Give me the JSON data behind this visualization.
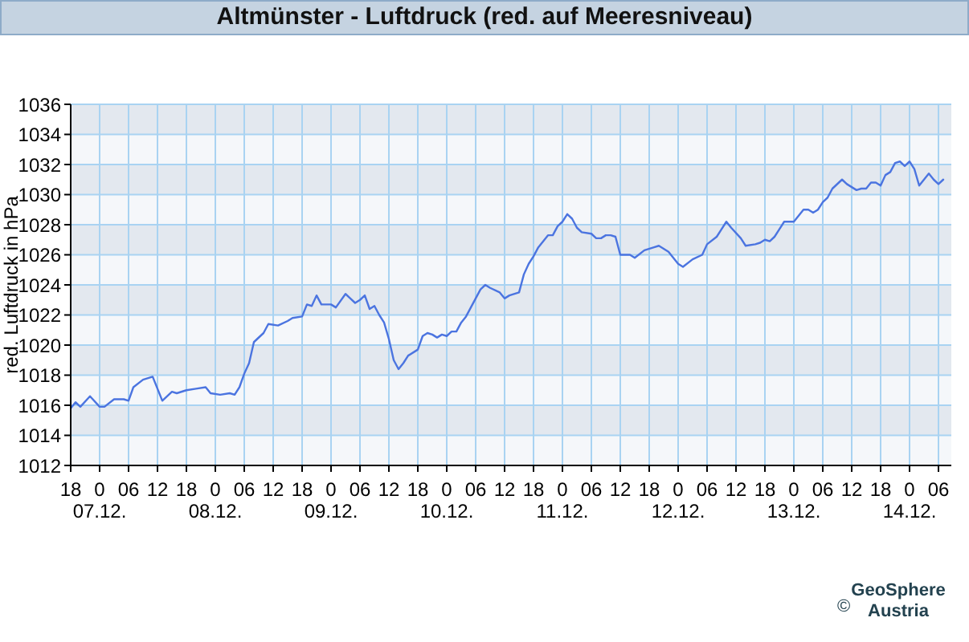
{
  "chart_data": {
    "type": "line",
    "title": "Altmünster - Luftdruck (red. auf Meeresniveau)",
    "ylabel": "red. Luftdruck in hPa",
    "x": [
      "--12-06T18:00",
      "--12-06T19:00",
      "--12-06T20:00",
      "--12-06T22:00",
      "--12-07T00:00",
      "--12-07T01:00",
      "--12-07T03:00",
      "--12-07T05:00",
      "--12-07T06:00",
      "--12-07T07:00",
      "--12-07T09:00",
      "--12-07T11:00",
      "--12-07T13:00",
      "--12-07T15:00",
      "--12-07T16:00",
      "--12-07T18:00",
      "--12-07T20:00",
      "--12-07T22:00",
      "--12-07T23:00",
      "--12-08T01:00",
      "--12-08T03:00",
      "--12-08T04:00",
      "--12-08T05:00",
      "--12-08T06:00",
      "--12-08T07:00",
      "--12-08T08:00",
      "--12-08T10:00",
      "--12-08T11:00",
      "--12-08T13:00",
      "--12-08T15:00",
      "--12-08T16:00",
      "--12-08T18:00",
      "--12-08T19:00",
      "--12-08T20:00",
      "--12-08T21:00",
      "--12-08T22:00",
      "--12-09T00:00",
      "--12-09T01:00",
      "--12-09T03:00",
      "--12-09T04:00",
      "--12-09T05:00",
      "--12-09T06:00",
      "--12-09T07:00",
      "--12-09T08:00",
      "--12-09T09:00",
      "--12-09T10:00",
      "--12-09T11:00",
      "--12-09T12:00",
      "--12-09T13:00",
      "--12-09T14:00",
      "--12-09T15:00",
      "--12-09T16:00",
      "--12-09T18:00",
      "--12-09T19:00",
      "--12-09T20:00",
      "--12-09T21:00",
      "--12-09T22:00",
      "--12-09T23:00",
      "--12-10T00:00",
      "--12-10T01:00",
      "--12-10T02:00",
      "--12-10T03:00",
      "--12-10T04:00",
      "--12-10T05:00",
      "--12-10T07:00",
      "--12-10T08:00",
      "--12-10T09:00",
      "--12-10T11:00",
      "--12-10T12:00",
      "--12-10T13:00",
      "--12-10T15:00",
      "--12-10T16:00",
      "--12-10T17:00",
      "--12-10T18:00",
      "--12-10T19:00",
      "--12-10T21:00",
      "--12-10T22:00",
      "--12-10T23:00",
      "--12-11T00:00",
      "--12-11T01:00",
      "--12-11T02:00",
      "--12-11T03:00",
      "--12-11T04:00",
      "--12-11T06:00",
      "--12-11T07:00",
      "--12-11T08:00",
      "--12-11T09:00",
      "--12-11T10:00",
      "--12-11T11:00",
      "--12-11T12:00",
      "--12-11T14:00",
      "--12-11T15:00",
      "--12-11T17:00",
      "--12-11T19:00",
      "--12-11T20:00",
      "--12-11T22:00",
      "--12-11T23:00",
      "--12-12T00:00",
      "--12-12T01:00",
      "--12-12T03:00",
      "--12-12T05:00",
      "--12-12T06:00",
      "--12-12T08:00",
      "--12-12T09:00",
      "--12-12T10:00",
      "--12-12T11:00",
      "--12-12T13:00",
      "--12-12T14:00",
      "--12-12T16:00",
      "--12-12T17:00",
      "--12-12T18:00",
      "--12-12T19:00",
      "--12-12T20:00",
      "--12-12T21:00",
      "--12-12T22:00",
      "--12-12T23:00",
      "--12-13T00:00",
      "--12-13T01:00",
      "--12-13T02:00",
      "--12-13T03:00",
      "--12-13T04:00",
      "--12-13T05:00",
      "--12-13T06:00",
      "--12-13T07:00",
      "--12-13T08:00",
      "--12-13T10:00",
      "--12-13T11:00",
      "--12-13T13:00",
      "--12-13T14:00",
      "--12-13T15:00",
      "--12-13T16:00",
      "--12-13T17:00",
      "--12-13T18:00",
      "--12-13T19:00",
      "--12-13T20:00",
      "--12-13T21:00",
      "--12-13T22:00",
      "--12-13T23:00",
      "--12-14T00:00",
      "--12-14T01:00",
      "--12-14T02:00",
      "--12-14T03:00",
      "--12-14T04:00",
      "--12-14T05:00",
      "--12-14T06:00",
      "--12-14T07:00"
    ],
    "values": [
      1015.8,
      1016.2,
      1015.9,
      1016.6,
      1015.9,
      1015.9,
      1016.4,
      1016.4,
      1016.3,
      1017.2,
      1017.7,
      1017.9,
      1016.3,
      1016.9,
      1016.8,
      1017.0,
      1017.1,
      1017.2,
      1016.8,
      1016.7,
      1016.8,
      1016.7,
      1017.2,
      1018.1,
      1018.8,
      1020.2,
      1020.8,
      1021.4,
      1021.3,
      1021.6,
      1021.8,
      1021.9,
      1022.7,
      1022.6,
      1023.3,
      1022.7,
      1022.7,
      1022.5,
      1023.4,
      1023.1,
      1022.8,
      1023.0,
      1023.3,
      1022.4,
      1022.6,
      1022.0,
      1021.5,
      1020.4,
      1019.0,
      1018.4,
      1018.8,
      1019.3,
      1019.7,
      1020.6,
      1020.8,
      1020.7,
      1020.5,
      1020.7,
      1020.6,
      1020.9,
      1020.9,
      1021.5,
      1021.9,
      1022.5,
      1023.7,
      1024.0,
      1023.8,
      1023.5,
      1023.1,
      1023.3,
      1023.5,
      1024.7,
      1025.4,
      1025.9,
      1026.5,
      1027.3,
      1027.3,
      1027.9,
      1028.2,
      1028.7,
      1028.4,
      1027.8,
      1027.5,
      1027.4,
      1027.1,
      1027.1,
      1027.3,
      1027.3,
      1027.2,
      1026.0,
      1026.0,
      1025.8,
      1026.3,
      1026.5,
      1026.6,
      1026.2,
      1025.8,
      1025.4,
      1025.2,
      1025.7,
      1026.0,
      1026.7,
      1027.2,
      1027.7,
      1028.2,
      1027.8,
      1027.1,
      1026.6,
      1026.7,
      1026.8,
      1027.0,
      1026.9,
      1027.2,
      1027.7,
      1028.2,
      1028.2,
      1028.2,
      1028.6,
      1029.0,
      1029.0,
      1028.8,
      1029.0,
      1029.5,
      1029.8,
      1030.4,
      1031.0,
      1030.7,
      1030.3,
      1030.4,
      1030.4,
      1030.8,
      1030.8,
      1030.6,
      1031.3,
      1031.5,
      1032.1,
      1032.2,
      1031.9,
      1032.2,
      1031.7,
      1030.6,
      1031.0,
      1031.4,
      1031.0,
      1030.7,
      1031.0
    ],
    "color": "#4b74e0",
    "xlim": [
      "--12-06T18:00",
      "--12-14T08:40"
    ],
    "xticks": [
      {
        "value": "--12-06T18:00",
        "label": "18"
      },
      {
        "value": "--12-07T00:00",
        "label": "0\n07.12."
      },
      {
        "value": "--12-07T06:00",
        "label": "06"
      },
      {
        "value": "--12-07T12:00",
        "label": "12"
      },
      {
        "value": "--12-07T18:00",
        "label": "18"
      },
      {
        "value": "--12-08T00:00",
        "label": "0\n08.12."
      },
      {
        "value": "--12-08T06:00",
        "label": "06"
      },
      {
        "value": "--12-08T12:00",
        "label": "12"
      },
      {
        "value": "--12-08T18:00",
        "label": "18"
      },
      {
        "value": "--12-09T00:00",
        "label": "0\n09.12."
      },
      {
        "value": "--12-09T06:00",
        "label": "06"
      },
      {
        "value": "--12-09T12:00",
        "label": "12"
      },
      {
        "value": "--12-09T18:00",
        "label": "18"
      },
      {
        "value": "--12-10T00:00",
        "label": "0\n10.12."
      },
      {
        "value": "--12-10T06:00",
        "label": "06"
      },
      {
        "value": "--12-10T12:00",
        "label": "12"
      },
      {
        "value": "--12-10T18:00",
        "label": "18"
      },
      {
        "value": "--12-11T00:00",
        "label": "0\n11.12."
      },
      {
        "value": "--12-11T06:00",
        "label": "06"
      },
      {
        "value": "--12-11T12:00",
        "label": "12"
      },
      {
        "value": "--12-11T18:00",
        "label": "18"
      },
      {
        "value": "--12-12T00:00",
        "label": "0\n12.12."
      },
      {
        "value": "--12-12T06:00",
        "label": "06"
      },
      {
        "value": "--12-12T12:00",
        "label": "12"
      },
      {
        "value": "--12-12T18:00",
        "label": "18"
      },
      {
        "value": "--12-13T00:00",
        "label": "0\n13.12."
      },
      {
        "value": "--12-13T06:00",
        "label": "06"
      },
      {
        "value": "--12-13T12:00",
        "label": "12"
      },
      {
        "value": "--12-13T18:00",
        "label": "18"
      },
      {
        "value": "--12-14T00:00",
        "label": "0\n14.12."
      },
      {
        "value": "--12-14T06:00",
        "label": "06"
      }
    ],
    "ylim": [
      1012,
      1036
    ],
    "yticks": [
      1012,
      1014,
      1016,
      1018,
      1020,
      1022,
      1024,
      1026,
      1028,
      1030,
      1032,
      1034,
      1036
    ],
    "grid": true,
    "annotations": [
      "©",
      "GeoSphere Austria"
    ]
  }
}
